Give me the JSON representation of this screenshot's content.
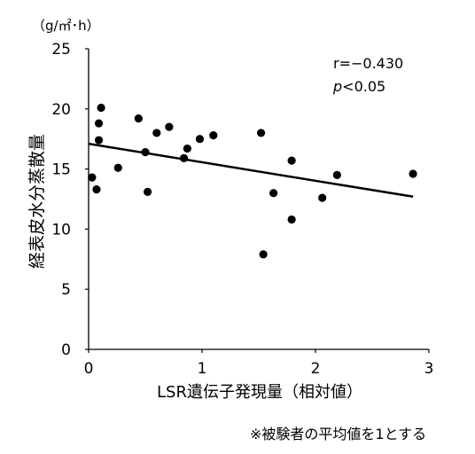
{
  "chart_data": {
    "type": "scatter",
    "unit_label": "（g/㎡･h）",
    "xlabel": "LSR遺伝子発現量（相対値）",
    "ylabel": "経表皮水分蒸散量",
    "xlim": [
      0,
      3
    ],
    "ylim": [
      0,
      25
    ],
    "x_ticks": [
      "0",
      "1",
      "2",
      "3"
    ],
    "y_ticks": [
      "0",
      "5",
      "10",
      "15",
      "20",
      "25"
    ],
    "grid": false,
    "annotation": {
      "r": "r=−0.430",
      "p_italic": "p",
      "p_rest": "<0.05"
    },
    "points": [
      {
        "x": 0.03,
        "y": 14.3
      },
      {
        "x": 0.07,
        "y": 13.3
      },
      {
        "x": 0.09,
        "y": 18.8
      },
      {
        "x": 0.09,
        "y": 17.4
      },
      {
        "x": 0.11,
        "y": 20.1
      },
      {
        "x": 0.26,
        "y": 15.1
      },
      {
        "x": 0.44,
        "y": 19.2
      },
      {
        "x": 0.5,
        "y": 16.4
      },
      {
        "x": 0.52,
        "y": 13.1
      },
      {
        "x": 0.6,
        "y": 18.0
      },
      {
        "x": 0.71,
        "y": 18.5
      },
      {
        "x": 0.84,
        "y": 15.9
      },
      {
        "x": 0.87,
        "y": 16.7
      },
      {
        "x": 0.98,
        "y": 17.5
      },
      {
        "x": 1.1,
        "y": 17.8
      },
      {
        "x": 1.52,
        "y": 18.0
      },
      {
        "x": 1.54,
        "y": 7.9
      },
      {
        "x": 1.63,
        "y": 13.0
      },
      {
        "x": 1.79,
        "y": 15.7
      },
      {
        "x": 1.79,
        "y": 10.8
      },
      {
        "x": 2.06,
        "y": 12.6
      },
      {
        "x": 2.19,
        "y": 14.5
      },
      {
        "x": 2.86,
        "y": 14.6
      }
    ],
    "trendline": {
      "x": [
        0,
        2.86
      ],
      "y": [
        17.1,
        12.7
      ]
    }
  },
  "footnote": "※被験者の平均値を1とする"
}
